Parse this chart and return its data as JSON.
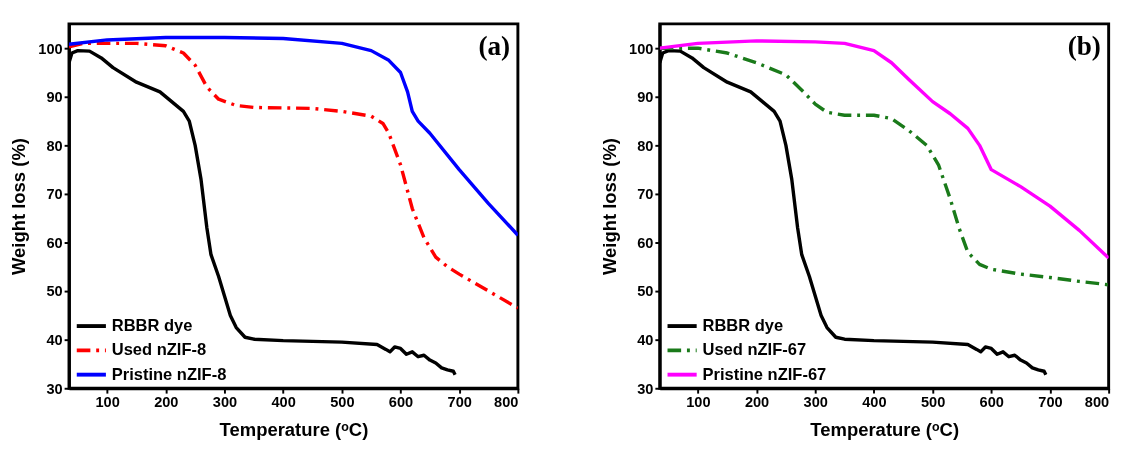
{
  "chart_data": [
    {
      "type": "line",
      "xlabel": "Temperature (ᵒC)",
      "ylabel": "Weight loss (%)",
      "annotations": [
        "(a)"
      ],
      "xlim": [
        35,
        800
      ],
      "ylim": [
        30,
        105
      ],
      "xticks": [
        100,
        200,
        300,
        400,
        500,
        600,
        700,
        800
      ],
      "yticks": [
        30,
        40,
        50,
        60,
        70,
        80,
        90,
        100
      ],
      "grid": false,
      "legend": "bottom left",
      "marker": "none",
      "series": [
        {
          "name": "RBBR dye",
          "color": "#000000",
          "line_style": "solid",
          "x": [
            35,
            40,
            50,
            70,
            90,
            110,
            150,
            190,
            210,
            230,
            240,
            250,
            260,
            270,
            277,
            290,
            300,
            310,
            320,
            335,
            350,
            400,
            500,
            560,
            575,
            582,
            590,
            600,
            610,
            620,
            630,
            640,
            650,
            660,
            670,
            680,
            690,
            693
          ],
          "values": [
            97,
            99,
            99.5,
            99.4,
            98,
            96,
            93,
            91,
            89,
            87,
            85,
            80,
            73,
            63,
            57.5,
            53,
            49,
            45,
            42.5,
            40.5,
            40.1,
            39.8,
            39.5,
            39,
            38,
            37.5,
            38.5,
            38.2,
            37,
            37.5,
            36.5,
            36.8,
            35.8,
            35.2,
            34.2,
            33.8,
            33.5,
            32.8
          ]
        },
        {
          "name": "Used nZIF-8",
          "color": "#ff0000",
          "line_style": "dashed",
          "x": [
            35,
            60,
            100,
            150,
            200,
            230,
            250,
            270,
            290,
            320,
            350,
            400,
            450,
            500,
            550,
            570,
            580,
            600,
            620,
            640,
            660,
            680,
            700,
            750,
            800
          ],
          "values": [
            100.3,
            101,
            101,
            101,
            100.5,
            99,
            96.5,
            92,
            89.5,
            88.2,
            87.8,
            87.7,
            87.6,
            87,
            86,
            84.5,
            82.5,
            76,
            67,
            61,
            57,
            55,
            53.5,
            50,
            46.5
          ]
        },
        {
          "name": "Pristine nZIF-8",
          "color": "#0000ff",
          "line_style": "solid",
          "x": [
            35,
            100,
            200,
            300,
            400,
            500,
            550,
            580,
            600,
            612,
            620,
            630,
            650,
            700,
            750,
            800
          ],
          "values": [
            100.8,
            101.7,
            102.2,
            102.2,
            102,
            101,
            99.5,
            97.5,
            95,
            91,
            87,
            85,
            82.5,
            75,
            68,
            61.5
          ]
        }
      ]
    },
    {
      "type": "line",
      "xlabel": "Temperature (ᵒC)",
      "ylabel": "Weight loss (%)",
      "annotations": [
        "(b)"
      ],
      "xlim": [
        35,
        800
      ],
      "ylim": [
        30,
        105
      ],
      "xticks": [
        100,
        200,
        300,
        400,
        500,
        600,
        700,
        800
      ],
      "yticks": [
        30,
        40,
        50,
        60,
        70,
        80,
        90,
        100
      ],
      "grid": false,
      "legend": "bottom left",
      "marker": "none",
      "series": [
        {
          "name": "RBBR dye",
          "color": "#000000",
          "line_style": "solid",
          "x": [
            35,
            40,
            50,
            70,
            90,
            110,
            150,
            190,
            210,
            230,
            240,
            250,
            260,
            270,
            277,
            290,
            300,
            310,
            320,
            335,
            350,
            400,
            500,
            560,
            575,
            582,
            590,
            600,
            610,
            620,
            630,
            640,
            650,
            660,
            670,
            680,
            690,
            693
          ],
          "values": [
            97,
            99,
            99.5,
            99.4,
            98,
            96,
            93,
            91,
            89,
            87,
            85,
            80,
            73,
            63,
            57.5,
            53,
            49,
            45,
            42.5,
            40.5,
            40.1,
            39.8,
            39.5,
            39,
            38,
            37.5,
            38.5,
            38.2,
            37,
            37.5,
            36.5,
            36.8,
            35.8,
            35.2,
            34.2,
            33.8,
            33.5,
            32.8
          ]
        },
        {
          "name": "Used nZIF-67",
          "color": "#1a7a1a",
          "line_style": "dashed",
          "x": [
            35,
            100,
            150,
            200,
            250,
            280,
            300,
            320,
            350,
            400,
            430,
            460,
            490,
            510,
            530,
            545,
            560,
            580,
            600,
            650,
            700,
            750,
            800
          ],
          "values": [
            100,
            100,
            99,
            97,
            94.5,
            91,
            88.5,
            86.8,
            86.2,
            86.2,
            85.5,
            83,
            80,
            76,
            69,
            63,
            58,
            55.5,
            54.5,
            53.5,
            52.8,
            52,
            51.3
          ]
        },
        {
          "name": "Pristine nZIF-67",
          "color": "#ff00ff",
          "line_style": "solid",
          "x": [
            35,
            100,
            200,
            300,
            350,
            400,
            430,
            460,
            500,
            530,
            560,
            580,
            600,
            650,
            700,
            750,
            800
          ],
          "values": [
            100,
            101,
            101.5,
            101.3,
            101,
            99.5,
            97,
            93.5,
            89,
            86.5,
            83.5,
            80,
            75,
            71.5,
            67.5,
            62.5,
            56.8
          ]
        }
      ]
    }
  ]
}
